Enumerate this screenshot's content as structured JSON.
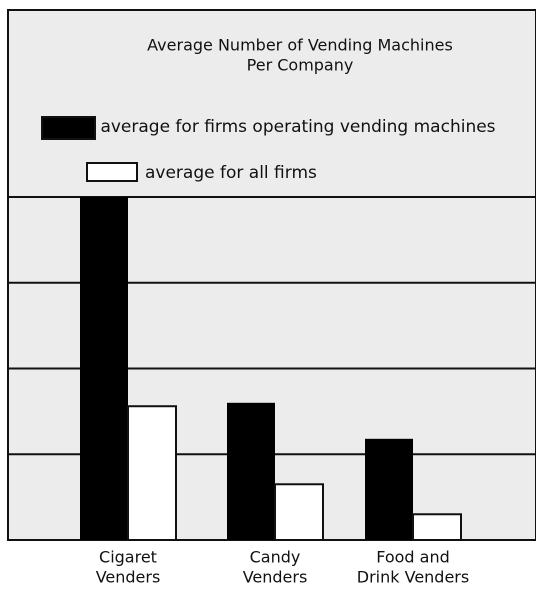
{
  "chart_data": {
    "type": "bar",
    "title": [
      "Average Number of Vending Machines",
      "Per Company"
    ],
    "categories": [
      [
        "Cigaret",
        "Venders"
      ],
      [
        "Candy",
        "Venders"
      ],
      [
        "Food and",
        "Drink Venders"
      ]
    ],
    "series": [
      {
        "name": "average for firms operating vending machines",
        "color": "#000000",
        "values": [
          4.0,
          1.6,
          1.18
        ]
      },
      {
        "name": "average for all firms",
        "color": "#ffffff",
        "values": [
          1.56,
          0.65,
          0.3
        ]
      }
    ],
    "ylim": [
      0,
      4
    ],
    "yticks": [
      1,
      2,
      3,
      4
    ],
    "grid": true
  }
}
